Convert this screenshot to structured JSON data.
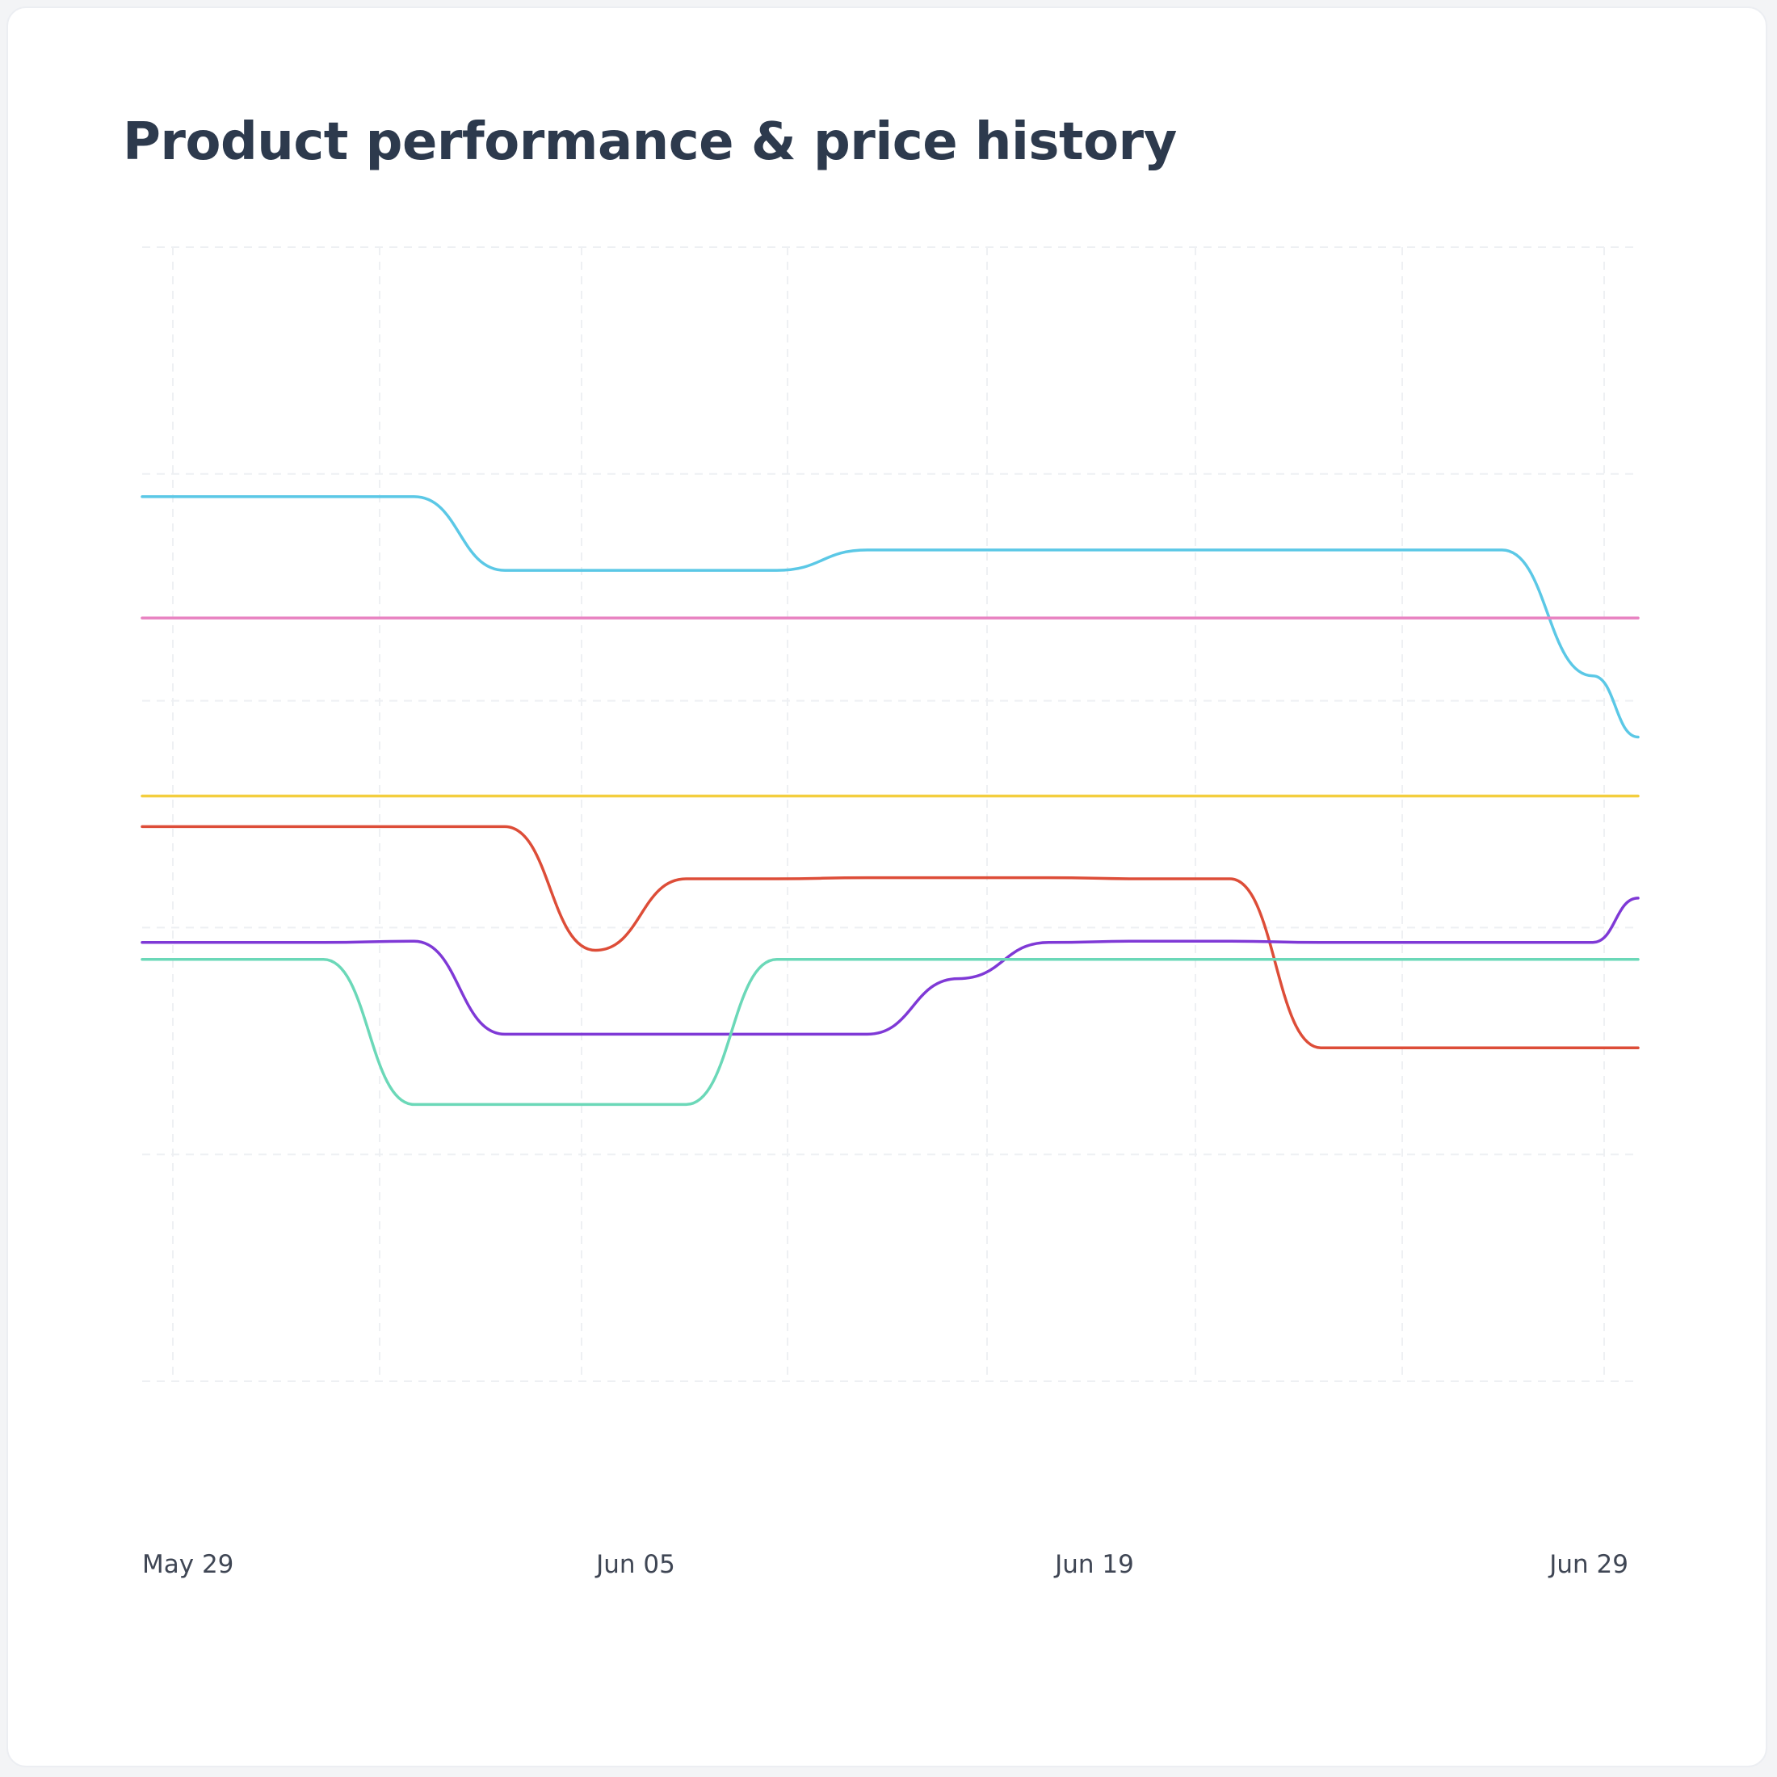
{
  "chart_data": {
    "type": "line",
    "title": "Product performance & price history",
    "xlabel": "",
    "ylabel": "",
    "x_ticks": [
      "May 29",
      "Jun 05",
      "Jun 19",
      "Jun 29"
    ],
    "xlim": [
      "2024-05-28",
      "2024-06-30"
    ],
    "ylim": [
      0,
      100
    ],
    "grid": true,
    "legend": "none",
    "x": [
      "2024-05-28",
      "2024-05-30",
      "2024-06-01",
      "2024-06-03",
      "2024-06-05",
      "2024-06-07",
      "2024-06-09",
      "2024-06-11",
      "2024-06-13",
      "2024-06-15",
      "2024-06-17",
      "2024-06-19",
      "2024-06-21",
      "2024-06-23",
      "2024-06-25",
      "2024-06-27",
      "2024-06-29",
      "2024-06-30"
    ],
    "series": [
      {
        "color": "#5bc8e6",
        "values": [
          78,
          78,
          78,
          78,
          71.5,
          71.5,
          71.5,
          71.5,
          73.3,
          73.3,
          73.3,
          73.3,
          73.3,
          73.3,
          73.3,
          73.3,
          62.2,
          56.8
        ]
      },
      {
        "color": "#e882c1",
        "values": [
          67.3,
          67.3,
          67.3,
          67.3,
          67.3,
          67.3,
          67.3,
          67.3,
          67.3,
          67.3,
          67.3,
          67.3,
          67.3,
          67.3,
          67.3,
          67.3,
          67.3,
          67.3
        ]
      },
      {
        "color": "#f3ce3e",
        "values": [
          51.6,
          51.6,
          51.6,
          51.6,
          51.6,
          51.6,
          51.6,
          51.6,
          51.6,
          51.6,
          51.6,
          51.6,
          51.6,
          51.6,
          51.6,
          51.6,
          51.6,
          51.6
        ]
      },
      {
        "color": "#dd4d38",
        "values": [
          48.9,
          48.9,
          48.9,
          48.9,
          48.9,
          38,
          44.3,
          44.3,
          44.4,
          44.4,
          44.4,
          44.3,
          44.3,
          29.4,
          29.4,
          29.4,
          29.4,
          29.4
        ]
      },
      {
        "color": "#7f39d6",
        "values": [
          38.7,
          38.7,
          38.7,
          38.8,
          30.6,
          30.6,
          30.6,
          30.6,
          30.6,
          35.5,
          38.7,
          38.8,
          38.8,
          38.7,
          38.7,
          38.7,
          38.7,
          42.6
        ]
      },
      {
        "color": "#6bd8b8",
        "values": [
          37.2,
          37.2,
          37.2,
          24.4,
          24.4,
          24.4,
          24.4,
          37.2,
          37.2,
          37.2,
          37.2,
          37.2,
          37.2,
          37.2,
          37.2,
          37.2,
          37.2,
          37.2
        ]
      }
    ]
  }
}
